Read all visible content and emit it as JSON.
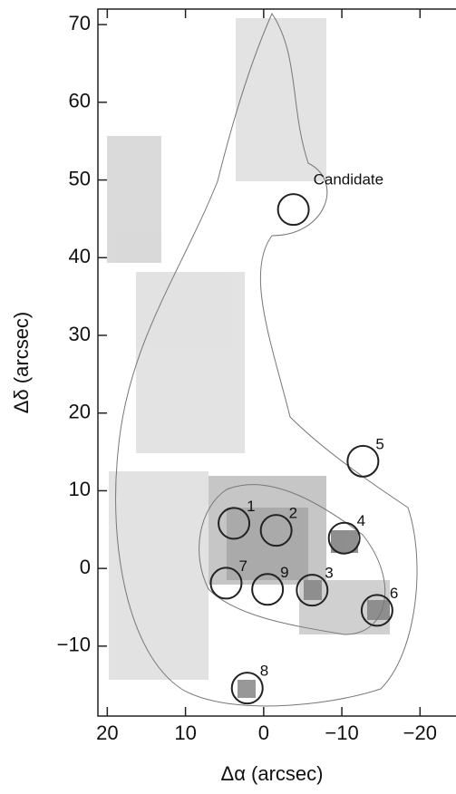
{
  "chart_data": {
    "type": "scatter",
    "xlabel": "Δα (arcsec)",
    "ylabel": "Δδ (arcsec)",
    "xlim": [
      21.2,
      -24.6
    ],
    "ylim": [
      -19,
      72
    ],
    "xticks": [
      20,
      10,
      0,
      {
        "value": -10,
        "label": "−10"
      },
      {
        "value": -20,
        "label": "−20"
      }
    ],
    "yticks": [
      {
        "value": -10,
        "label": "−10"
      },
      0,
      10,
      20,
      30,
      40,
      50,
      60,
      70
    ],
    "labels": [
      "Candidate",
      "1",
      "2",
      "3",
      "4",
      "5",
      "6",
      "7",
      "9",
      "8"
    ],
    "x": [
      -3.8,
      3.8,
      -1.6,
      -6.2,
      -10.3,
      -12.7,
      -14.5,
      4.8,
      -0.5,
      2.1
    ],
    "values": [
      46.2,
      5.8,
      4.9,
      -2.8,
      3.9,
      13.8,
      -5.4,
      -1.9,
      -2.7,
      -15.4
    ],
    "color": "#222222"
  }
}
